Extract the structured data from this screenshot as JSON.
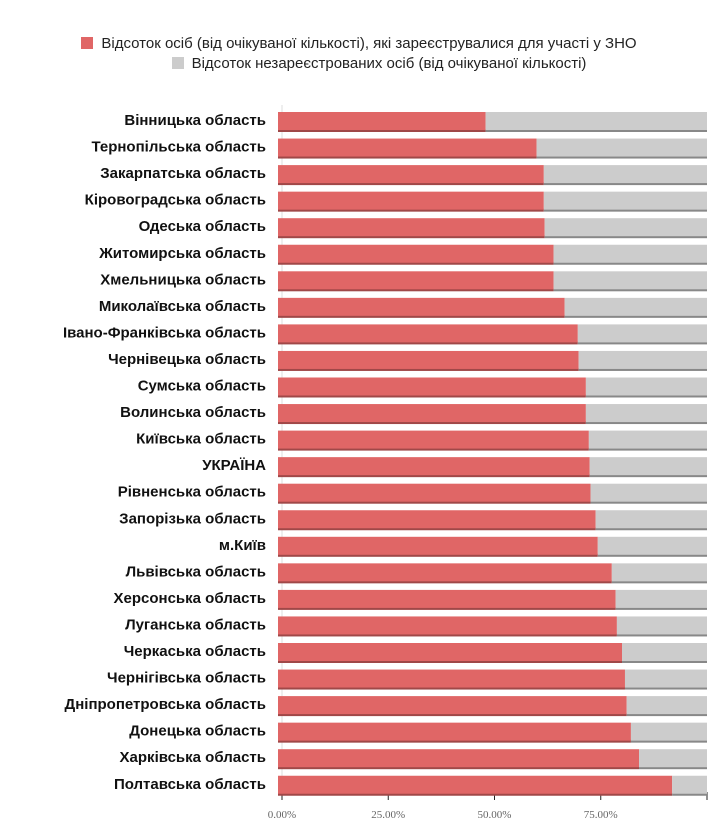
{
  "chart_data": {
    "type": "bar",
    "orientation": "horizontal",
    "stacked": true,
    "title": "",
    "xlabel": "",
    "ylabel": "",
    "xlim": [
      0,
      100
    ],
    "xticks": [
      "0.00%",
      "25.00%",
      "50.00%",
      "75.00%"
    ],
    "legend_position": "top",
    "categories": [
      "Вінницька область",
      "Тернопільська область",
      "Закарпатська область",
      "Кіровоградська область",
      "Одеська область",
      "Житомирська область",
      "Хмельницька область",
      "Миколаївська область",
      "Івано-Франківська область",
      "Чернівецька область",
      "Сумська область",
      "Волинська область",
      "Київська область",
      "УКРАЇНА",
      "Рівненська область",
      "Запорізька область",
      "м.Київ",
      "Львівська область",
      "Херсонська область",
      "Луганська область",
      "Черкаська область",
      "Чернігівська область",
      "Дніпропетровська область",
      "Донецька область",
      "Харківська область",
      "Полтавська область"
    ],
    "series": [
      {
        "name": "Відсоток осіб (від очікуваної кількості), які зареєструвалися для участі у ЗНО",
        "color": "#e06666",
        "values": [
          47.9,
          59.9,
          61.6,
          61.6,
          61.8,
          63.9,
          63.9,
          66.5,
          69.6,
          69.8,
          71.5,
          71.5,
          72.2,
          72.4,
          72.6,
          73.8,
          74.3,
          77.6,
          78.5,
          78.8,
          80.0,
          80.7,
          81.1,
          82.1,
          84.0,
          91.8
        ]
      },
      {
        "name": "Відсоток незареєстрованих осіб (від очікуваної кількості)",
        "color": "#cccccc",
        "values": [
          52.1,
          40.1,
          38.4,
          38.4,
          38.2,
          36.1,
          36.1,
          33.5,
          30.4,
          30.2,
          28.5,
          28.5,
          27.8,
          27.6,
          27.4,
          26.2,
          25.7,
          22.4,
          21.5,
          21.2,
          20.0,
          19.3,
          18.9,
          17.9,
          16.0,
          8.2
        ]
      }
    ]
  }
}
